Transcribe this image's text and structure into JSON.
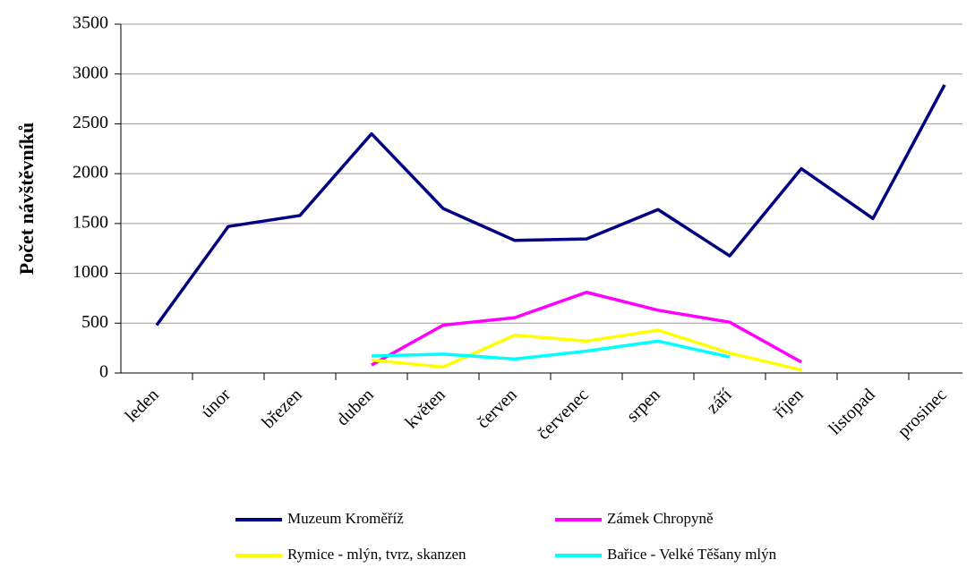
{
  "chart_data": {
    "type": "line",
    "ylabel": "Počet návštěvníků",
    "categories": [
      "leden",
      "únor",
      "březen",
      "duben",
      "květen",
      "červen",
      "červenec",
      "srpen",
      "září",
      "říjen",
      "listopad",
      "prosinec"
    ],
    "series": [
      {
        "name": "Muzeum Kroměříž",
        "color": "#000080",
        "values": [
          480,
          1470,
          1580,
          2400,
          1650,
          1330,
          1345,
          1640,
          1175,
          2050,
          1550,
          2890
        ]
      },
      {
        "name": "Zámek Chropyně",
        "color": "#ff00ff",
        "values": [
          null,
          null,
          null,
          80,
          480,
          555,
          810,
          630,
          510,
          110,
          null,
          null
        ]
      },
      {
        "name": "Rymice - mlýn, tvrz, skanzen",
        "color": "#ffff00",
        "values": [
          null,
          null,
          null,
          130,
          60,
          380,
          320,
          430,
          200,
          30,
          null,
          null
        ]
      },
      {
        "name": "Bařice - Velké Těšany mlýn",
        "color": "#00ffff",
        "values": [
          null,
          null,
          null,
          170,
          190,
          140,
          220,
          320,
          160,
          null,
          null,
          null
        ]
      }
    ],
    "ylim": [
      0,
      3500
    ],
    "yticks": [
      0,
      500,
      1000,
      1500,
      2000,
      2500,
      3000,
      3500
    ],
    "grid": true,
    "legend": "bottom"
  }
}
